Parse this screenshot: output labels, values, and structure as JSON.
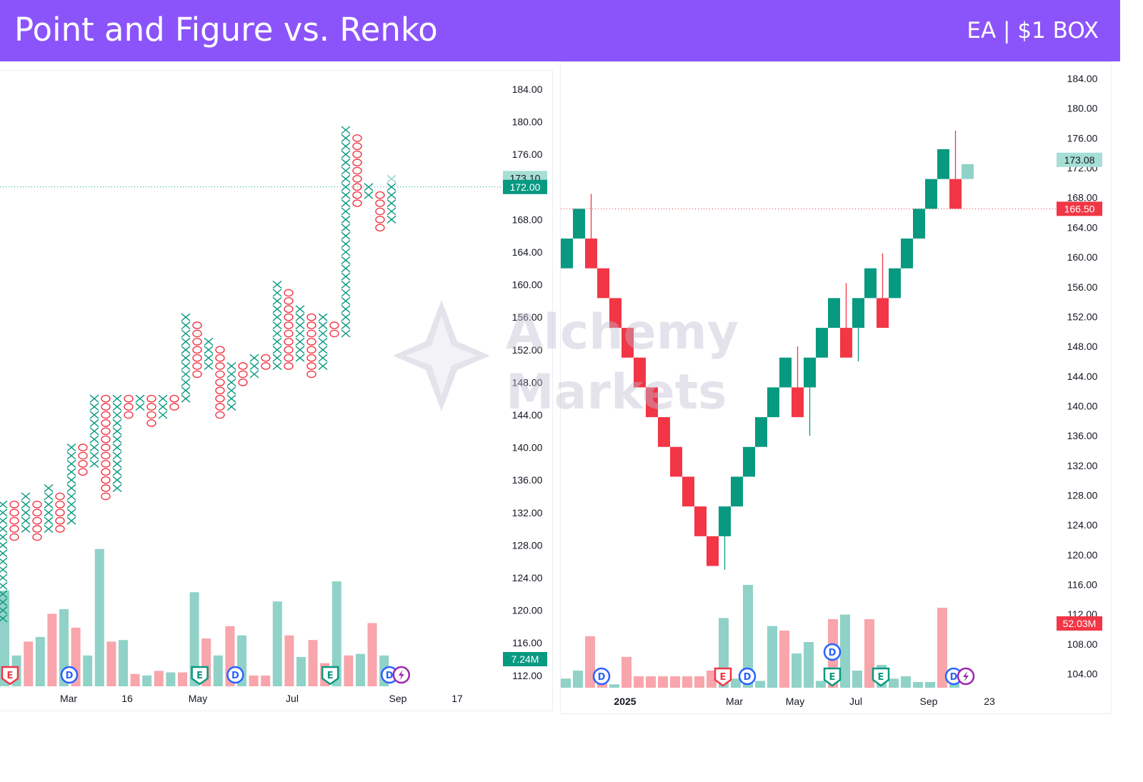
{
  "header": {
    "title": "Point and Figure vs. Renko",
    "subtitle": "EA | $1 BOX",
    "background": "#8b54fa"
  },
  "watermark": {
    "text": "Alchemy\nMarkets"
  },
  "colors": {
    "up": "#089981",
    "down": "#f23645",
    "vol_up": "#90d2c7",
    "vol_down": "#f8a5ab",
    "event_blue": "#2962ff",
    "event_red": "#f23645",
    "event_green": "#089981",
    "event_purple": "#9c27b0"
  },
  "chart_data": [
    {
      "type": "point_and_figure",
      "box_size": 1,
      "y_axis": {
        "ticks": [
          "184.00",
          "180.00",
          "176.00",
          "172.00",
          "168.00",
          "164.00",
          "160.00",
          "156.00",
          "152.00",
          "148.00",
          "144.00",
          "140.00",
          "136.00",
          "132.00",
          "128.00",
          "124.00",
          "120.00",
          "116.00",
          "112.00"
        ],
        "tick_values": [
          184,
          180,
          176,
          172,
          168,
          164,
          160,
          156,
          152,
          148,
          144,
          140,
          136,
          132,
          128,
          124,
          120,
          116,
          112
        ]
      },
      "x_axis": {
        "labels": [
          "Mar",
          "16",
          "May",
          "Jul",
          "Sep",
          "17"
        ]
      },
      "columns": [
        {
          "type": "X",
          "low": 119,
          "high": 133
        },
        {
          "type": "O",
          "low": 129,
          "high": 133
        },
        {
          "type": "X",
          "low": 130,
          "high": 134
        },
        {
          "type": "O",
          "low": 129,
          "high": 133
        },
        {
          "type": "X",
          "low": 130,
          "high": 135
        },
        {
          "type": "O",
          "low": 130,
          "high": 134
        },
        {
          "type": "X",
          "low": 131,
          "high": 140
        },
        {
          "type": "O",
          "low": 137,
          "high": 140
        },
        {
          "type": "X",
          "low": 138,
          "high": 146
        },
        {
          "type": "O",
          "low": 134,
          "high": 146
        },
        {
          "type": "X",
          "low": 135,
          "high": 146
        },
        {
          "type": "O",
          "low": 144,
          "high": 146
        },
        {
          "type": "X",
          "low": 145,
          "high": 146
        },
        {
          "type": "O",
          "low": 143,
          "high": 146
        },
        {
          "type": "X",
          "low": 144,
          "high": 146
        },
        {
          "type": "O",
          "low": 145,
          "high": 146
        },
        {
          "type": "X",
          "low": 146,
          "high": 156
        },
        {
          "type": "O",
          "low": 149,
          "high": 155
        },
        {
          "type": "X",
          "low": 150,
          "high": 153
        },
        {
          "type": "O",
          "low": 144,
          "high": 152
        },
        {
          "type": "X",
          "low": 145,
          "high": 150
        },
        {
          "type": "O",
          "low": 148,
          "high": 150
        },
        {
          "type": "X",
          "low": 149,
          "high": 151
        },
        {
          "type": "O",
          "low": 150,
          "high": 151
        },
        {
          "type": "X",
          "low": 150,
          "high": 160
        },
        {
          "type": "O",
          "low": 150,
          "high": 159
        },
        {
          "type": "X",
          "low": 151,
          "high": 157
        },
        {
          "type": "O",
          "low": 149,
          "high": 156
        },
        {
          "type": "X",
          "low": 150,
          "high": 156
        },
        {
          "type": "O",
          "low": 154,
          "high": 155
        },
        {
          "type": "X",
          "low": 154,
          "high": 179
        },
        {
          "type": "O",
          "low": 170,
          "high": 178
        },
        {
          "type": "X",
          "low": 171,
          "high": 172
        },
        {
          "type": "O",
          "low": 167,
          "high": 171
        },
        {
          "type": "X",
          "low": 168,
          "high": 172
        }
      ],
      "current_x_column": {
        "low": 173,
        "high": 173
      },
      "volume": {
        "values": [
          0.62,
          0.2,
          0.29,
          0.32,
          0.47,
          0.5,
          0.38,
          0.2,
          0.89,
          0.29,
          0.3,
          0.08,
          0.07,
          0.1,
          0.09,
          0.09,
          0.61,
          0.31,
          0.2,
          0.39,
          0.33,
          0.07,
          0.07,
          0.55,
          0.33,
          0.19,
          0.3,
          0.15,
          0.68,
          0.2,
          0.21,
          0.41,
          0.2
        ],
        "directions": [
          "up",
          "up",
          "down",
          "up",
          "down",
          "up",
          "down",
          "up",
          "up",
          "down",
          "up",
          "down",
          "up",
          "down",
          "up",
          "down",
          "up",
          "down",
          "up",
          "down",
          "up",
          "down",
          "down",
          "up",
          "down",
          "up",
          "down",
          "down",
          "up",
          "down",
          "up",
          "down",
          "up"
        ],
        "last_tag": "7.24M"
      },
      "events": [
        {
          "type": "E",
          "color": "event_red",
          "index": 0
        },
        {
          "type": "D",
          "color": "event_blue",
          "index": 5
        },
        {
          "type": "E",
          "color": "event_green",
          "index": 16
        },
        {
          "type": "D",
          "color": "event_blue",
          "index": 19
        },
        {
          "type": "E",
          "color": "event_green",
          "index": 27
        },
        {
          "type": "D",
          "color": "event_blue",
          "index": 32
        },
        {
          "type": "lightning",
          "color": "event_purple",
          "index": 33
        }
      ],
      "price_tags": {
        "previous": {
          "label": "173.10",
          "value": 173.1
        },
        "last": {
          "label": "172.00",
          "value": 172
        }
      }
    },
    {
      "type": "renko",
      "box_size": 4,
      "y_axis": {
        "ticks": [
          "184.00",
          "180.00",
          "176.00",
          "172.00",
          "168.00",
          "164.00",
          "160.00",
          "156.00",
          "152.00",
          "148.00",
          "144.00",
          "140.00",
          "136.00",
          "132.00",
          "128.00",
          "124.00",
          "120.00",
          "116.00",
          "112.00",
          "108.00",
          "104.00"
        ],
        "tick_values": [
          184,
          180,
          176,
          172,
          168,
          164,
          160,
          156,
          152,
          148,
          144,
          140,
          136,
          132,
          128,
          124,
          120,
          116,
          112,
          108,
          104
        ]
      },
      "x_axis": {
        "labels": [
          "2025",
          "Mar",
          "May",
          "Jul",
          "Sep",
          "23"
        ]
      },
      "bricks": [
        {
          "dir": "up",
          "low": 158.5,
          "high": 162.5
        },
        {
          "dir": "up",
          "low": 162.5,
          "high": 166.5
        },
        {
          "dir": "down",
          "low": 158.5,
          "high": 162.5,
          "wick": 168.5
        },
        {
          "dir": "down",
          "low": 154.5,
          "high": 158.5
        },
        {
          "dir": "down",
          "low": 150.5,
          "high": 154.5
        },
        {
          "dir": "down",
          "low": 146.5,
          "high": 150.5
        },
        {
          "dir": "down",
          "low": 142.5,
          "high": 146.5
        },
        {
          "dir": "down",
          "low": 138.5,
          "high": 142.5
        },
        {
          "dir": "down",
          "low": 134.5,
          "high": 138.5
        },
        {
          "dir": "down",
          "low": 130.5,
          "high": 134.5
        },
        {
          "dir": "down",
          "low": 126.5,
          "high": 130.5
        },
        {
          "dir": "down",
          "low": 122.5,
          "high": 126.5
        },
        {
          "dir": "down",
          "low": 118.5,
          "high": 122.5
        },
        {
          "dir": "up",
          "low": 122.5,
          "high": 126.5,
          "lowwick": 118
        },
        {
          "dir": "up",
          "low": 126.5,
          "high": 130.5
        },
        {
          "dir": "up",
          "low": 130.5,
          "high": 134.5
        },
        {
          "dir": "up",
          "low": 134.5,
          "high": 138.5
        },
        {
          "dir": "up",
          "low": 138.5,
          "high": 142.5
        },
        {
          "dir": "up",
          "low": 142.5,
          "high": 146.5
        },
        {
          "dir": "down",
          "low": 138.5,
          "high": 142.5,
          "wick": 148
        },
        {
          "dir": "up",
          "low": 142.5,
          "high": 146.5,
          "lowwick": 136
        },
        {
          "dir": "up",
          "low": 146.5,
          "high": 150.5
        },
        {
          "dir": "up",
          "low": 150.5,
          "high": 154.5
        },
        {
          "dir": "down",
          "low": 146.5,
          "high": 150.5,
          "wick": 156.5
        },
        {
          "dir": "up",
          "low": 150.5,
          "high": 154.5,
          "lowwick": 146
        },
        {
          "dir": "up",
          "low": 154.5,
          "high": 158.5
        },
        {
          "dir": "down",
          "low": 150.5,
          "high": 154.5,
          "wick": 160.5
        },
        {
          "dir": "up",
          "low": 154.5,
          "high": 158.5
        },
        {
          "dir": "up",
          "low": 158.5,
          "high": 162.5
        },
        {
          "dir": "up",
          "low": 162.5,
          "high": 166.5
        },
        {
          "dir": "up",
          "low": 166.5,
          "high": 170.5
        },
        {
          "dir": "up",
          "low": 170.5,
          "high": 174.5
        },
        {
          "dir": "down",
          "low": 166.5,
          "high": 170.5,
          "wick": 177
        },
        {
          "dir": "pending",
          "low": 170.5,
          "high": 172.5
        }
      ],
      "volume": {
        "values": [
          0.08,
          0.15,
          0.45,
          0.1,
          0.03,
          0.27,
          0.1,
          0.1,
          0.1,
          0.1,
          0.1,
          0.1,
          0.15,
          0.61,
          0.08,
          0.9,
          0.06,
          0.54,
          0.5,
          0.3,
          0.4,
          0.06,
          0.6,
          0.64,
          0.15,
          0.6,
          0.2,
          0.08,
          0.1,
          0.05,
          0.05,
          0.7,
          0.1
        ],
        "directions": [
          "up",
          "up",
          "down",
          "down",
          "up",
          "down",
          "down",
          "down",
          "down",
          "down",
          "down",
          "down",
          "down",
          "up",
          "up",
          "up",
          "up",
          "up",
          "down",
          "up",
          "up",
          "up",
          "down",
          "up",
          "up",
          "down",
          "up",
          "up",
          "up",
          "up",
          "up",
          "down",
          "up"
        ],
        "last_tag": "52.03M"
      },
      "events": [
        {
          "type": "D",
          "color": "event_blue",
          "index": 2
        },
        {
          "type": "E",
          "color": "event_red",
          "index": 12
        },
        {
          "type": "D",
          "color": "event_blue",
          "index": 14
        },
        {
          "type": "D",
          "color": "event_blue",
          "index": 21,
          "raised": true
        },
        {
          "type": "E",
          "color": "event_green",
          "index": 21
        },
        {
          "type": "E",
          "color": "event_green",
          "index": 25
        },
        {
          "type": "D",
          "color": "event_blue",
          "index": 31
        },
        {
          "type": "lightning",
          "color": "event_purple",
          "index": 32
        }
      ],
      "price_tags": {
        "previous": {
          "label": "173.08",
          "value": 173.08
        },
        "last": {
          "label": "166.50",
          "value": 166.5
        }
      }
    }
  ]
}
